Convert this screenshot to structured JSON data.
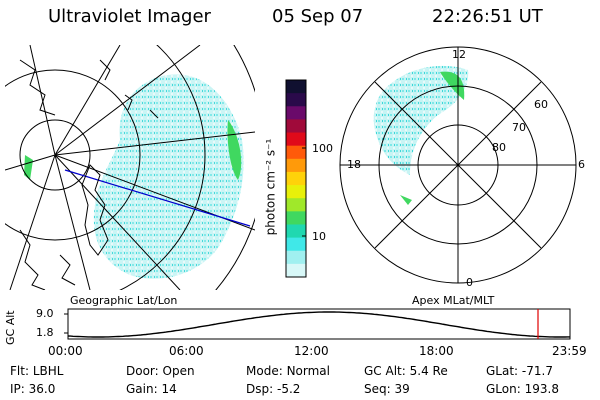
{
  "header": {
    "title": "Ultraviolet Imager",
    "date": "05 Sep 07",
    "time": "22:26:51 UT"
  },
  "panels": {
    "left_caption": "Geographic Lat/Lon",
    "right_caption": "Apex MLat/MLT"
  },
  "colorbar": {
    "label": "photon cm⁻² s⁻¹",
    "ticks": [
      "100",
      "10"
    ],
    "colors": [
      "#101030",
      "#2a0a4a",
      "#6a0a6a",
      "#a00a3a",
      "#e00a1a",
      "#ff5a0a",
      "#ff9a0a",
      "#ffd20a",
      "#e8f00a",
      "#a0e82a",
      "#40d860",
      "#20d8b0",
      "#40e8e8",
      "#a0f0f0",
      "#d8f8f8"
    ]
  },
  "polar": {
    "mlt_labels": {
      "top": "12",
      "left": "18",
      "right": "6",
      "bottom": "0"
    },
    "lat_labels": [
      "60",
      "70",
      "80"
    ]
  },
  "altitude_plot": {
    "ylabel": "GC Alt",
    "yticks": [
      "9.0",
      "1.8"
    ],
    "xticks": [
      "00:00",
      "06:00",
      "12:00",
      "18:00",
      "23:59"
    ],
    "marker_color": "#e00000"
  },
  "info": {
    "row1": [
      {
        "label": "Flt:",
        "value": "LBHL"
      },
      {
        "label": "Door:",
        "value": "Open"
      },
      {
        "label": "Mode:",
        "value": "Normal"
      },
      {
        "label": "GC Alt:",
        "value": "5.4 Re"
      },
      {
        "label": "GLat:",
        "value": "-71.7"
      }
    ],
    "row2": [
      {
        "label": "IP:",
        "value": "36.0"
      },
      {
        "label": "Gain:",
        "value": "14"
      },
      {
        "label": "Dsp:",
        "value": "-5.2"
      },
      {
        "label": "Seq:",
        "value": "39"
      },
      {
        "label": "GLon:",
        "value": "193.8"
      }
    ]
  }
}
